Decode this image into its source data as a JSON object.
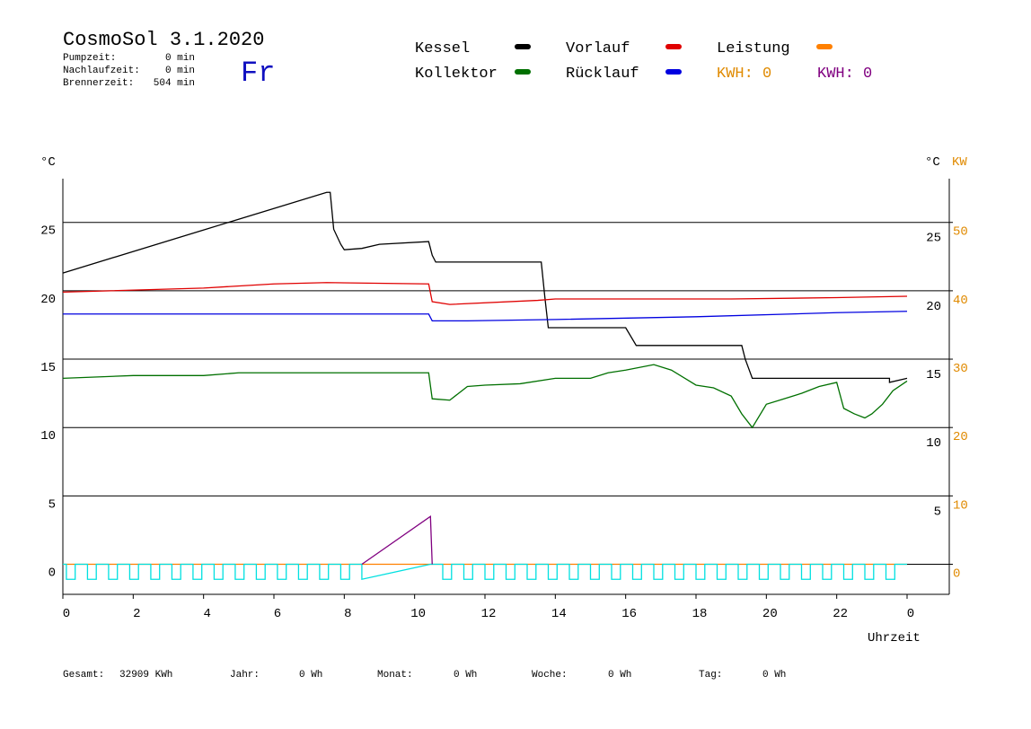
{
  "header": {
    "title": "CosmoSol 3.1.2020",
    "day": "Fr",
    "stats": [
      {
        "label": "Pumpzeit:",
        "value": "0 min"
      },
      {
        "label": "Nachlaufzeit:",
        "value": "0 min"
      },
      {
        "label": "Brennerzeit:",
        "value": "504 min"
      }
    ]
  },
  "kwh_labels": [
    {
      "text": "KWH: 0",
      "color": "#e08a00"
    },
    {
      "text": "KWH: 0",
      "color": "#800080"
    }
  ],
  "footer": [
    {
      "label": "Gesamt:",
      "value": "32909 KWh"
    },
    {
      "label": "Jahr:",
      "value": "0 Wh"
    },
    {
      "label": "Monat:",
      "value": "0 Wh"
    },
    {
      "label": "Woche:",
      "value": "0 Wh"
    },
    {
      "label": "Tag:",
      "value": "0 Wh"
    }
  ],
  "chart_data": {
    "type": "line",
    "y_label": "°C",
    "y2_unit_label": "°C",
    "y2_label": "KW",
    "x_label": "Uhrzeit",
    "xlim": [
      0,
      25.2
    ],
    "xticks": [
      0,
      2,
      4,
      6,
      8,
      10,
      12,
      14,
      16,
      18,
      20,
      22,
      {
        "value": 24,
        "label": "0"
      }
    ],
    "ylim": [
      -2.2,
      28.2
    ],
    "yticks": [
      0,
      5,
      10,
      15,
      20,
      25
    ],
    "yticks_right": [
      5,
      10,
      15,
      20,
      25
    ],
    "y2lim": [
      -4.4,
      56.4
    ],
    "y2ticks": [
      0,
      10,
      20,
      30,
      40,
      50
    ],
    "y2color": "#e08a00",
    "grid": true,
    "series": [
      {
        "name": "Kessel",
        "color": "#000000",
        "x": [
          0,
          7.5,
          7.6,
          7.7,
          7.9,
          8.0,
          8.5,
          9.0,
          10.4,
          10.5,
          10.6,
          13.6,
          13.7,
          13.8,
          16.0,
          16.3,
          19.3,
          19.4,
          19.6,
          23.5,
          23.5,
          24
        ],
        "values": [
          21.3,
          27.2,
          27.2,
          24.5,
          23.4,
          23.0,
          23.1,
          23.4,
          23.6,
          22.6,
          22.1,
          22.1,
          19.6,
          17.3,
          17.3,
          16.0,
          16.0,
          15.0,
          13.6,
          13.6,
          13.3,
          13.6
        ]
      },
      {
        "name": "Vorlauf",
        "color": "#e00000",
        "x": [
          0,
          4,
          6,
          7.5,
          10.4,
          10.5,
          11,
          13.5,
          14,
          19,
          22,
          24
        ],
        "values": [
          19.9,
          20.2,
          20.5,
          20.6,
          20.5,
          19.2,
          19.0,
          19.3,
          19.4,
          19.4,
          19.5,
          19.6
        ]
      },
      {
        "name": "Leistung",
        "color": "#ff8000",
        "axis": "y2",
        "x": [
          0,
          24
        ],
        "values": [
          0,
          0
        ]
      },
      {
        "name": "Kollektor",
        "color": "#007000",
        "x": [
          0,
          2,
          4,
          5,
          8,
          10.4,
          10.5,
          11,
          11.5,
          12,
          13,
          14,
          15,
          15.5,
          16,
          16.8,
          17.3,
          18,
          18.5,
          19,
          19.3,
          19.6,
          20,
          20.5,
          21,
          21.5,
          22,
          22.2,
          22.5,
          22.8,
          23,
          23.3,
          23.6,
          24
        ],
        "values": [
          13.6,
          13.8,
          13.8,
          14.0,
          14.0,
          14.0,
          12.1,
          12.0,
          13.0,
          13.1,
          13.2,
          13.6,
          13.6,
          14.0,
          14.2,
          14.6,
          14.2,
          13.1,
          12.9,
          12.3,
          11.0,
          10.0,
          11.7,
          12.1,
          12.5,
          13.0,
          13.3,
          11.4,
          11.0,
          10.7,
          11.0,
          11.7,
          12.7,
          13.4
        ]
      },
      {
        "name": "Rücklauf",
        "color": "#0000e0",
        "x": [
          0,
          10.4,
          10.5,
          11.5,
          14,
          18,
          22,
          24
        ],
        "values": [
          18.3,
          18.3,
          17.8,
          17.8,
          17.9,
          18.1,
          18.4,
          18.5
        ]
      },
      {
        "color": "#00e0e0",
        "x": [
          0,
          0.1,
          0.1,
          0.35,
          0.35,
          0.7,
          0.7,
          0.95,
          0.95,
          1.3,
          1.3,
          1.55,
          1.55,
          1.9,
          1.9,
          2.15,
          2.15,
          2.5,
          2.5,
          2.75,
          2.75,
          3.1,
          3.1,
          3.35,
          3.35,
          3.7,
          3.7,
          3.95,
          3.95,
          4.3,
          4.3,
          4.55,
          4.55,
          4.9,
          4.9,
          5.15,
          5.15,
          5.5,
          5.5,
          5.75,
          5.75,
          6.1,
          6.1,
          6.35,
          6.35,
          6.7,
          6.7,
          6.95,
          6.95,
          7.3,
          7.3,
          7.55,
          7.55,
          7.9,
          7.9,
          8.15,
          8.15,
          8.5,
          8.5,
          10.45,
          10.8,
          10.8,
          11.05,
          11.05,
          11.4,
          11.4,
          11.65,
          11.65,
          12,
          12,
          12.25,
          12.25,
          12.6,
          12.6,
          12.85,
          12.85,
          13.2,
          13.2,
          13.45,
          13.45,
          13.8,
          13.8,
          14.05,
          14.05,
          14.4,
          14.4,
          14.65,
          14.65,
          15,
          15,
          15.25,
          15.25,
          15.6,
          15.6,
          15.85,
          15.85,
          16.2,
          16.2,
          16.45,
          16.45,
          16.8,
          16.8,
          17.05,
          17.05,
          17.4,
          17.4,
          17.65,
          17.65,
          18,
          18,
          18.25,
          18.25,
          18.6,
          18.6,
          18.85,
          18.85,
          19.2,
          19.2,
          19.45,
          19.45,
          19.8,
          19.8,
          20.05,
          20.05,
          20.4,
          20.4,
          20.65,
          20.65,
          21,
          21,
          21.25,
          21.25,
          21.6,
          21.6,
          21.85,
          21.85,
          22.2,
          22.2,
          22.45,
          22.45,
          22.8,
          22.8,
          23.05,
          23.05,
          23.4,
          23.4,
          23.65,
          23.65,
          24
        ],
        "values": [
          0,
          0,
          -1.1,
          -1.1,
          0,
          0,
          -1.1,
          -1.1,
          0,
          0,
          -1.1,
          -1.1,
          0,
          0,
          -1.1,
          -1.1,
          0,
          0,
          -1.1,
          -1.1,
          0,
          0,
          -1.1,
          -1.1,
          0,
          0,
          -1.1,
          -1.1,
          0,
          0,
          -1.1,
          -1.1,
          0,
          0,
          -1.1,
          -1.1,
          0,
          0,
          -1.1,
          -1.1,
          0,
          0,
          -1.1,
          -1.1,
          0,
          0,
          -1.1,
          -1.1,
          0,
          0,
          -1.1,
          -1.1,
          0,
          0,
          -1.1,
          -1.1,
          0,
          0,
          -1.1,
          0,
          0,
          -1.1,
          -1.1,
          0,
          0,
          -1.1,
          -1.1,
          0,
          0,
          -1.1,
          -1.1,
          0,
          0,
          -1.1,
          -1.1,
          0,
          0,
          -1.1,
          -1.1,
          0,
          0,
          -1.1,
          -1.1,
          0,
          0,
          -1.1,
          -1.1,
          0,
          0,
          -1.1,
          -1.1,
          0,
          0,
          -1.1,
          -1.1,
          0,
          0,
          -1.1,
          -1.1,
          0,
          0,
          -1.1,
          -1.1,
          0,
          0,
          -1.1,
          -1.1,
          0,
          0,
          -1.1,
          -1.1,
          0,
          0,
          -1.1,
          -1.1,
          0,
          0,
          -1.1,
          -1.1,
          0,
          0,
          -1.1,
          -1.1,
          0,
          0,
          -1.1,
          -1.1,
          0,
          0,
          -1.1,
          -1.1,
          0,
          0,
          -1.1,
          -1.1,
          0,
          0,
          -1.1,
          -1.1,
          0,
          0,
          -1.1,
          -1.1,
          0,
          0,
          -1.1,
          -1.1,
          0,
          0
        ]
      },
      {
        "color": "#800080",
        "axis": "y2",
        "x": [
          8.5,
          10.45,
          10.5
        ],
        "values": [
          0,
          7,
          0
        ]
      }
    ]
  }
}
